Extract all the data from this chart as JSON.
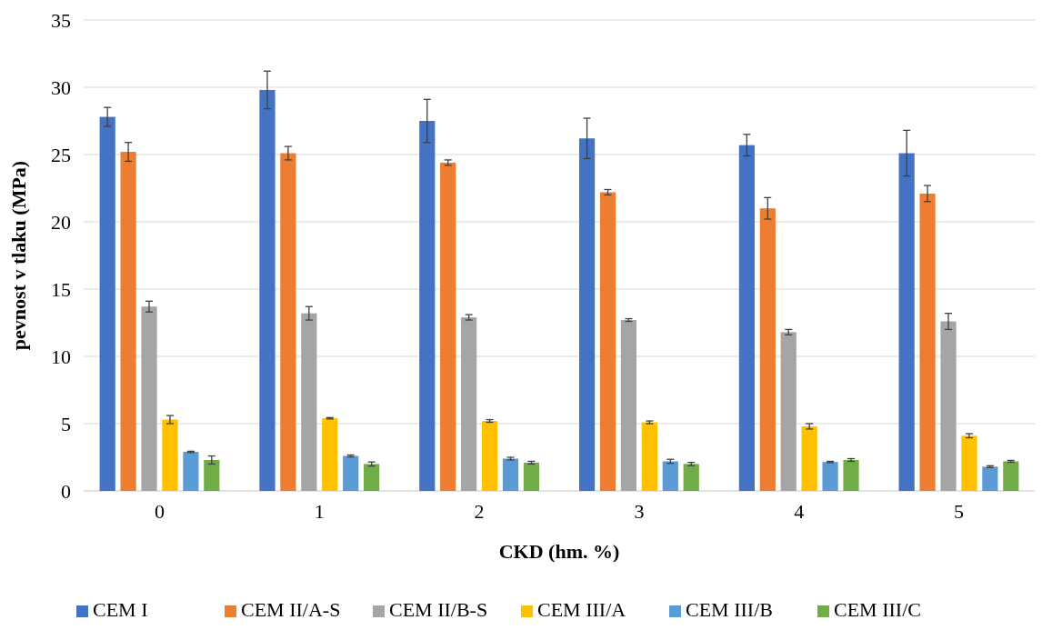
{
  "chart_data": {
    "type": "bar",
    "xlabel": "CKD (hm. %)",
    "ylabel": "pevnost v tlaku (MPa)",
    "categories": [
      "0",
      "1",
      "2",
      "3",
      "4",
      "5"
    ],
    "ylim": [
      0,
      35
    ],
    "yticks": [
      0,
      5,
      10,
      15,
      20,
      25,
      30,
      35
    ],
    "grid": "y",
    "legend": "bottom",
    "series": [
      {
        "name": "CEM I",
        "color": "#4472c4",
        "values": [
          27.8,
          29.8,
          27.5,
          26.2,
          25.7,
          25.1
        ],
        "errors": [
          0.7,
          1.4,
          1.6,
          1.5,
          0.8,
          1.7
        ]
      },
      {
        "name": "CEM II/A-S",
        "color": "#ed7d31",
        "values": [
          25.2,
          25.1,
          24.4,
          22.2,
          21.0,
          22.1
        ],
        "errors": [
          0.7,
          0.5,
          0.2,
          0.2,
          0.8,
          0.6
        ]
      },
      {
        "name": "CEM II/B-S",
        "color": "#a5a5a5",
        "values": [
          13.7,
          13.2,
          12.9,
          12.7,
          11.8,
          12.6
        ],
        "errors": [
          0.4,
          0.5,
          0.2,
          0.1,
          0.2,
          0.6
        ]
      },
      {
        "name": "CEM III/A",
        "color": "#ffc000",
        "values": [
          5.3,
          5.4,
          5.2,
          5.1,
          4.8,
          4.1
        ],
        "errors": [
          0.3,
          0.05,
          0.1,
          0.1,
          0.2,
          0.15
        ]
      },
      {
        "name": "CEM III/B",
        "color": "#5b9bd5",
        "values": [
          2.9,
          2.6,
          2.4,
          2.2,
          2.15,
          1.8
        ],
        "errors": [
          0.05,
          0.07,
          0.1,
          0.15,
          0.05,
          0.07
        ]
      },
      {
        "name": "CEM III/C",
        "color": "#70ad47",
        "values": [
          2.3,
          2.0,
          2.1,
          2.0,
          2.3,
          2.2
        ],
        "errors": [
          0.3,
          0.15,
          0.1,
          0.12,
          0.1,
          0.07
        ]
      }
    ]
  }
}
